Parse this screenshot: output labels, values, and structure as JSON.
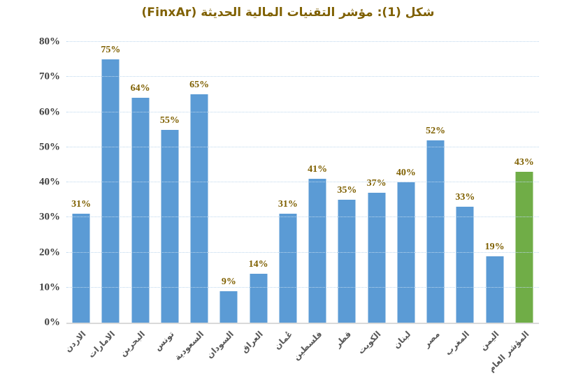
{
  "chart_data": {
    "type": "bar",
    "title": "شكل (1): مؤشر التقنيات المالية الحديثة  (FinxAr)",
    "categories": [
      "الاردن",
      "الامارات",
      "البحرين",
      "تونس",
      "السعودية",
      "السودان",
      "العراق",
      "عُمان",
      "فلسطين",
      "قطر",
      "الكويت",
      "لبنان",
      "مصر",
      "المغرب",
      "اليمن",
      "المؤشر العام"
    ],
    "values": [
      31,
      75,
      64,
      55,
      65,
      9,
      14,
      31,
      41,
      35,
      37,
      40,
      52,
      33,
      19,
      43
    ],
    "data_labels": [
      "31%",
      "75%",
      "64%",
      "55%",
      "65%",
      "9%",
      "14%",
      "31%",
      "41%",
      "35%",
      "37%",
      "40%",
      "52%",
      "33%",
      "19%",
      "43%"
    ],
    "highlight_index": 15,
    "yticks": [
      "0%",
      "10%",
      "20%",
      "30%",
      "40%",
      "50%",
      "60%",
      "70%",
      "80%"
    ],
    "ylim": [
      0,
      80
    ],
    "grid": "horizontal-dotted",
    "legend": "none",
    "colors": {
      "bar_default": "#5B9BD5",
      "bar_highlight": "#70AD47",
      "title": "#7F6000",
      "data_label": "#7F6000",
      "axis_tick": "#404040",
      "category_label": "#595959",
      "gridline": "#BDD7EE",
      "baseline": "#D9D9D9"
    }
  }
}
